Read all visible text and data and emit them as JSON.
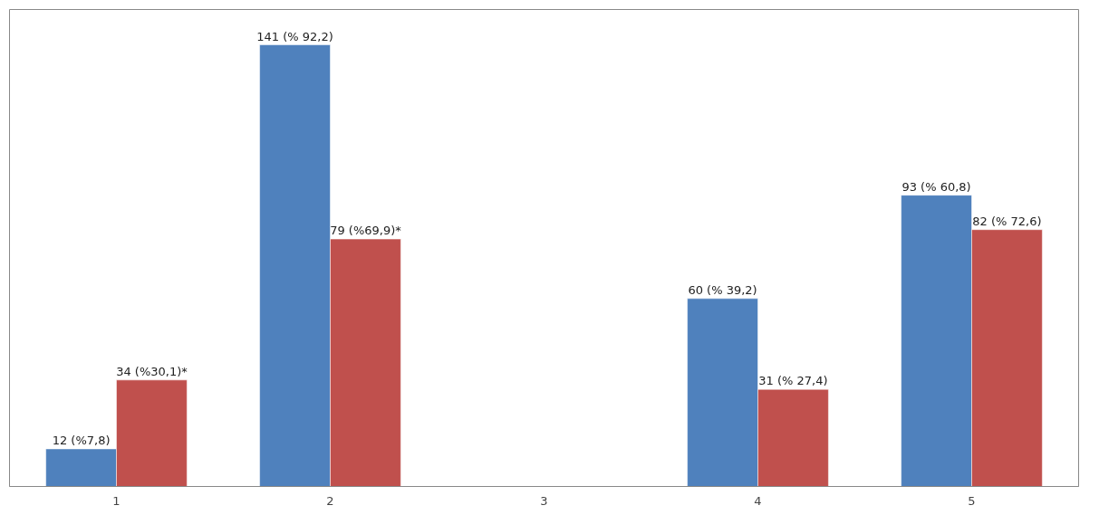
{
  "chart_data": {
    "type": "bar",
    "categories": [
      "1",
      "2",
      "3",
      "4",
      "5"
    ],
    "series": [
      {
        "color": "#4f81bd",
        "values": [
          12,
          141,
          null,
          60,
          93
        ],
        "value_labels": [
          "12 (%7,8)",
          "141 (% 92,2)",
          null,
          "60 (% 39,2)",
          "93 (% 60,8)"
        ]
      },
      {
        "color": "#c0504d",
        "values": [
          34,
          79,
          null,
          31,
          82
        ],
        "value_labels": [
          "34 (%30,1)*",
          "79 (%69,9)*",
          null,
          "31 (% 27,4)",
          "82 (% 72,6)"
        ]
      }
    ],
    "grid": false
  }
}
